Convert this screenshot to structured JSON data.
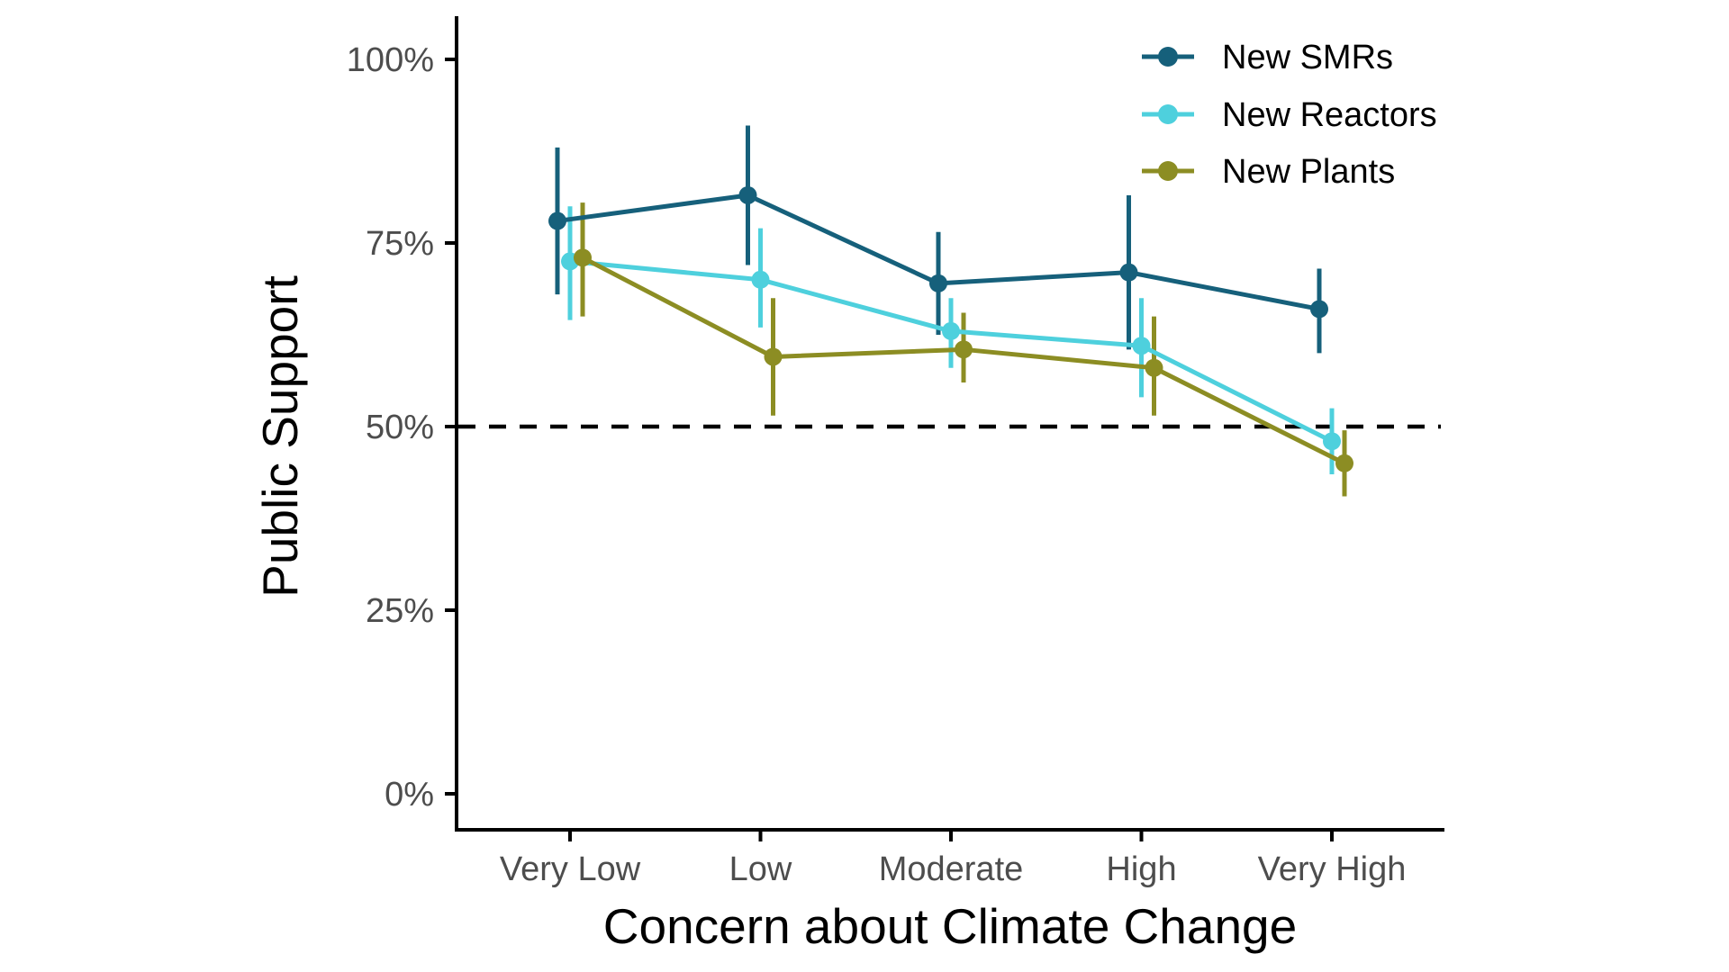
{
  "chart_data": {
    "type": "line",
    "title": "",
    "xlabel": "Concern about Climate Change",
    "ylabel": "Public Support",
    "categories": [
      "Very Low",
      "Low",
      "Moderate",
      "High",
      "Very High"
    ],
    "yticks": [
      0,
      25,
      50,
      75,
      100
    ],
    "ytick_labels": [
      "0%",
      "25%",
      "50%",
      "75%",
      "100%"
    ],
    "ylim": [
      0,
      105
    ],
    "grid": false,
    "legend_position": "top-right",
    "reference_line": {
      "y": 50,
      "style": "dashed",
      "color": "#000000"
    },
    "axis_color": "#000000",
    "tick_label_color": "#4d4d4d",
    "series": [
      {
        "name": "New SMRs",
        "color": "#16607b",
        "values": [
          78,
          81.5,
          69.5,
          71,
          66
        ],
        "ci_low": [
          68,
          72,
          62.5,
          60.5,
          60
        ],
        "ci_high": [
          88,
          91,
          76.5,
          81.5,
          71.5
        ]
      },
      {
        "name": "New Reactors",
        "color": "#4ed0dd",
        "values": [
          72.5,
          70,
          63,
          61,
          48
        ],
        "ci_low": [
          64.5,
          63.5,
          58,
          54,
          43.5
        ],
        "ci_high": [
          80,
          77,
          67.5,
          67.5,
          52.5
        ]
      },
      {
        "name": "New Plants",
        "color": "#8c8d23",
        "values": [
          73,
          59.5,
          60.5,
          58,
          45
        ],
        "ci_low": [
          65,
          51.5,
          56,
          51.5,
          40.5
        ],
        "ci_high": [
          80.5,
          67.5,
          65.5,
          65,
          49.5
        ]
      }
    ]
  }
}
